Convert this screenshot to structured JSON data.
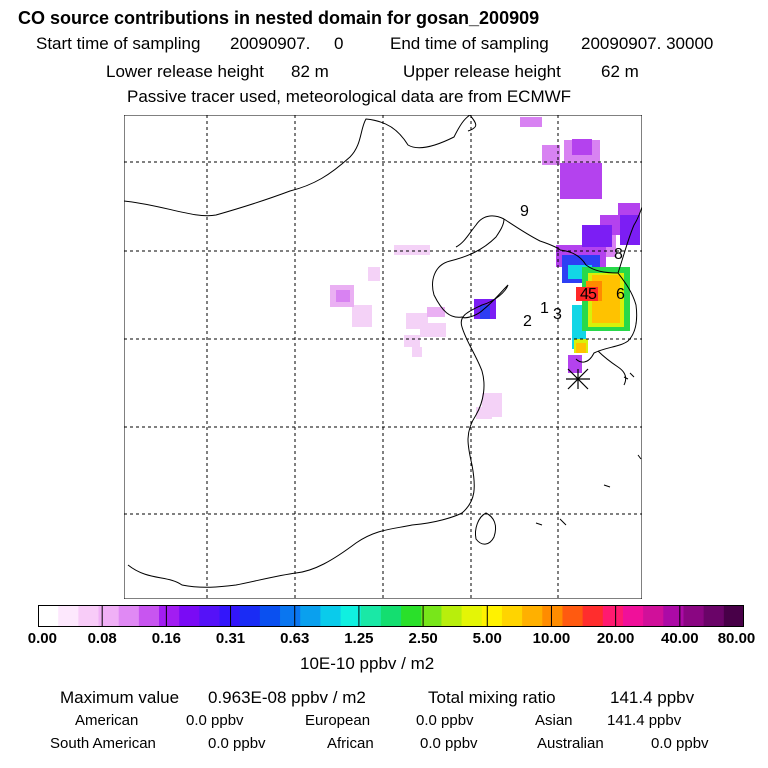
{
  "header": {
    "title": "CO  source contributions in nested domain for gosan_200909",
    "start_label": "Start time of sampling",
    "start_value": "20090907.     0",
    "end_label": "End time of sampling",
    "end_value": "20090907. 30000",
    "lower_label": "Lower release height",
    "lower_value": "82 m",
    "upper_label": "Upper release height",
    "upper_value": "62 m",
    "note": "Passive tracer used, meteorological data are from ECMWF"
  },
  "map": {
    "day_labels": [
      "9",
      "8",
      "6",
      "4",
      "5",
      "1",
      "3",
      "2"
    ],
    "site_marker": "asterisk-icon"
  },
  "legend": {
    "ticks": [
      "0.00",
      "0.08",
      "0.16",
      "0.31",
      "0.63",
      "1.25",
      "2.50",
      "5.00",
      "10.00",
      "20.00",
      "40.00",
      "80.00"
    ],
    "unit": "10E-10 ppbv / m2",
    "colors": [
      "#ffffff",
      "#fde8fd",
      "#f8ccf8",
      "#f0b0f6",
      "#e089f4",
      "#c855f0",
      "#a21df2",
      "#7a0bf5",
      "#5512f8",
      "#3316fb",
      "#1a2cf5",
      "#0a50f0",
      "#0a76f0",
      "#0aa0ee",
      "#0acbeb",
      "#10f0e0",
      "#1ae8a6",
      "#14de70",
      "#2ae02a",
      "#78e61a",
      "#b8ee0c",
      "#e4f506",
      "#fff200",
      "#ffd400",
      "#ffb000",
      "#ff8c00",
      "#ff5a10",
      "#ff2d2d",
      "#ff1a70",
      "#f0109a",
      "#d0109a",
      "#ac0aa6",
      "#8a0682",
      "#6a0468",
      "#480048"
    ]
  },
  "stats": {
    "max_label": "Maximum value",
    "max_value": "0.963E-08 ppbv / m2",
    "total_label": "Total mixing ratio",
    "total_value": "141.4 ppbv",
    "american_label": "American",
    "american_value": "0.0 ppbv",
    "european_label": "European",
    "european_value": "0.0 ppbv",
    "asian_label": "Asian",
    "asian_value": "141.4 ppbv",
    "south_american_label": "South American",
    "south_american_value": "0.0 ppbv",
    "african_label": "African",
    "african_value": "0.0 ppbv",
    "australian_label": "Australian",
    "australian_value": "0.0 ppbv"
  }
}
